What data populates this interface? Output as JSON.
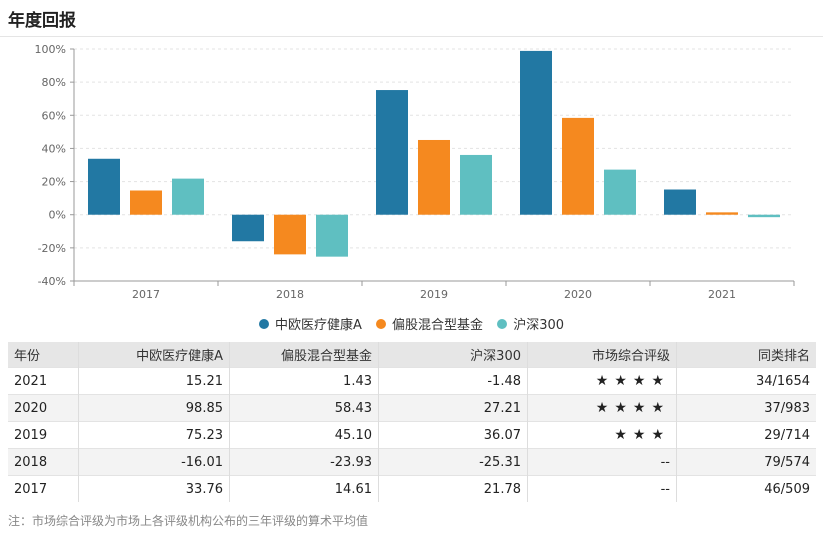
{
  "title": "年度回报",
  "chart_data": {
    "type": "bar",
    "categories": [
      "2017",
      "2018",
      "2019",
      "2020",
      "2021"
    ],
    "series": [
      {
        "name": "中欧医疗健康A",
        "color": "#2278a3",
        "values": [
          33.76,
          -16.01,
          75.23,
          98.85,
          15.21
        ]
      },
      {
        "name": "偏股混合型基金",
        "color": "#f5891f",
        "values": [
          14.61,
          -23.93,
          45.1,
          58.43,
          1.43
        ]
      },
      {
        "name": "沪深300",
        "color": "#5fbfc1",
        "values": [
          21.78,
          -25.31,
          36.07,
          27.21,
          -1.48
        ]
      }
    ],
    "ylim": [
      -40,
      100
    ],
    "yticks": [
      "-40%",
      "-20%",
      "0%",
      "20%",
      "40%",
      "60%",
      "80%",
      "100%"
    ],
    "grid": true,
    "legend": "bottom"
  },
  "table": {
    "headers": [
      "年份",
      "中欧医疗健康A",
      "偏股混合型基金",
      "沪深300",
      "市场综合评级",
      "同类排名"
    ],
    "rows": [
      {
        "year": "2021",
        "fund": "15.21",
        "peer": "1.43",
        "index": "-1.48",
        "rating": "★★★★",
        "rank": "34/1654"
      },
      {
        "year": "2020",
        "fund": "98.85",
        "peer": "58.43",
        "index": "27.21",
        "rating": "★★★★",
        "rank": "37/983"
      },
      {
        "year": "2019",
        "fund": "75.23",
        "peer": "45.10",
        "index": "36.07",
        "rating": "★★★",
        "rank": "29/714"
      },
      {
        "year": "2018",
        "fund": "-16.01",
        "peer": "-23.93",
        "index": "-25.31",
        "rating": "--",
        "rank": "79/574"
      },
      {
        "year": "2017",
        "fund": "33.76",
        "peer": "14.61",
        "index": "21.78",
        "rating": "--",
        "rank": "46/509"
      }
    ]
  },
  "note": "注：市场综合评级为市场上各评级机构公布的三年评级的算术平均值"
}
